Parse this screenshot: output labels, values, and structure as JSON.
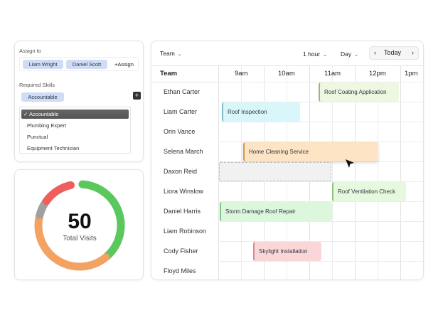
{
  "assign": {
    "assign_to_label": "Assign to",
    "assignees": [
      "Liam Wright",
      "Daniel Scott"
    ],
    "assign_button": "+Assign",
    "required_skills_label": "Required Skills",
    "selected_skill": "Accountable",
    "add_symbol": "+",
    "skill_options": [
      "Accountable",
      "Plumbing Expert",
      "Punctual",
      "Equipment Technician"
    ],
    "checkmark": "✓"
  },
  "visits": {
    "value": "50",
    "label": "Total Visits",
    "segments": [
      {
        "color": "#5ac85c",
        "fraction": 0.38
      },
      {
        "color": "#f4a261",
        "fraction": 0.4
      },
      {
        "color": "#a0a0a0",
        "fraction": 0.06
      },
      {
        "color": "#ef5d5d",
        "fraction": 0.12
      }
    ]
  },
  "schedule": {
    "team_dropdown": "Team",
    "interval": "1 hour",
    "view": "Day",
    "today": "Today",
    "prev": "‹",
    "next": "›",
    "team_header": "Team",
    "times": [
      "9am",
      "10am",
      "11am",
      "12pm",
      "1pm"
    ],
    "members": [
      "Ethan Carter",
      "Liam Carter",
      "Orin Vance",
      "Selena March",
      "Daxon Reid",
      "Liora Winslow",
      "Daniel Harris",
      "Liam Robinson",
      "Cody Fisher",
      "Floyd Miles"
    ],
    "events": [
      {
        "title": "Roof Coating Application",
        "bg": "#eef7e0",
        "border": "#9bb87a"
      },
      {
        "title": "Roof Inspection",
        "bg": "#d9f6fb",
        "border": "#7dbccb"
      },
      {
        "title": "Home Cleaning Service",
        "bg": "#fde4c4",
        "border": "#d49a55"
      },
      {
        "title": "Roof Ventilation Check",
        "bg": "#e6f9df",
        "border": "#8fc27f"
      },
      {
        "title": "Storm Damage Roof Repair",
        "bg": "#dcf7dc",
        "border": "#7fbf83"
      },
      {
        "title": "Skylight Installation",
        "bg": "#fbd6d9",
        "border": "#d68a92"
      }
    ]
  }
}
